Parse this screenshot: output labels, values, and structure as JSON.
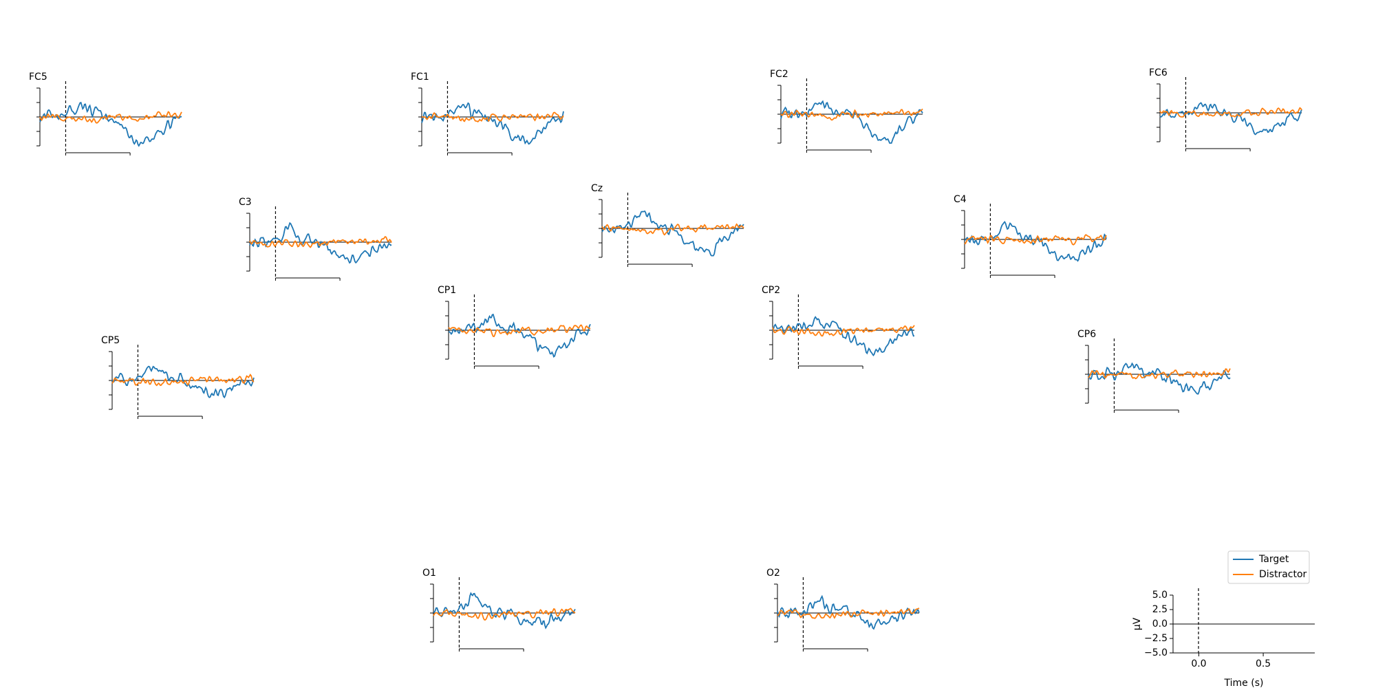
{
  "chart_data": {
    "type": "line",
    "layout": "topomap-subplots",
    "x_unit": "s",
    "y_unit": "µV",
    "time_range": [
      -0.2,
      0.9
    ],
    "ylim": [
      -5.0,
      5.0
    ],
    "series": [
      {
        "name": "Target",
        "color": "#1f77b4"
      },
      {
        "name": "Distractor",
        "color": "#ff7f0e"
      }
    ],
    "legend": {
      "position": "bottom-right",
      "entries": [
        "Target",
        "Distractor"
      ]
    },
    "key_axes": {
      "ylabel": "µV",
      "xlabel": "Time (s)",
      "ytick_labels": [
        "5.0",
        "2.5",
        "0.0",
        "−2.5",
        "−5.0"
      ],
      "ytick_values": [
        5.0,
        2.5,
        0.0,
        -2.5,
        -5.0
      ],
      "xtick_labels": [
        "0.0",
        "0.5"
      ],
      "xtick_values": [
        0.0,
        0.5
      ]
    },
    "channels": [
      {
        "name": "FC5",
        "target_peak": 1.8,
        "target_trough": -4.6,
        "distractor_amp": 0.8,
        "seed": 11
      },
      {
        "name": "FC1",
        "target_peak": 1.6,
        "target_trough": -4.2,
        "distractor_amp": 0.9,
        "seed": 23
      },
      {
        "name": "FC2",
        "target_peak": 2.0,
        "target_trough": -4.4,
        "distractor_amp": 0.7,
        "seed": 37
      },
      {
        "name": "FC6",
        "target_peak": 1.4,
        "target_trough": -3.6,
        "distractor_amp": 0.6,
        "seed": 41
      },
      {
        "name": "C3",
        "target_peak": 2.2,
        "target_trough": -3.2,
        "distractor_amp": 0.9,
        "seed": 53
      },
      {
        "name": "Cz",
        "target_peak": 2.4,
        "target_trough": -4.4,
        "distractor_amp": 0.9,
        "seed": 67
      },
      {
        "name": "C4",
        "target_peak": 2.0,
        "target_trough": -3.6,
        "distractor_amp": 0.7,
        "seed": 71
      },
      {
        "name": "CP1",
        "target_peak": 2.2,
        "target_trough": -4.0,
        "distractor_amp": 0.9,
        "seed": 83
      },
      {
        "name": "CP2",
        "target_peak": 1.6,
        "target_trough": -4.0,
        "distractor_amp": 0.8,
        "seed": 97
      },
      {
        "name": "CP5",
        "target_peak": 2.2,
        "target_trough": -2.6,
        "distractor_amp": 0.6,
        "seed": 101
      },
      {
        "name": "CP6",
        "target_peak": 1.4,
        "target_trough": -2.8,
        "distractor_amp": 0.7,
        "seed": 113
      },
      {
        "name": "O1",
        "target_peak": 3.2,
        "target_trough": -1.8,
        "distractor_amp": 1.0,
        "seed": 127
      },
      {
        "name": "O2",
        "target_peak": 2.0,
        "target_trough": -1.8,
        "distractor_amp": 0.9,
        "seed": 131
      }
    ]
  }
}
